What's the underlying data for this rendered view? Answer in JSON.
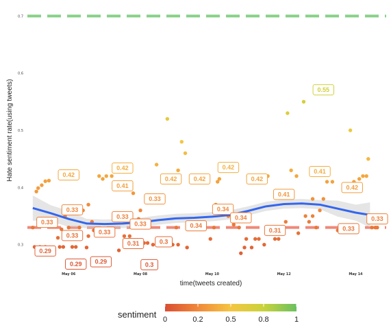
{
  "chart_data": {
    "type": "scatter",
    "xlabel": "time(tweets created)",
    "ylabel": "Hate sentiment rate(using tweets)",
    "x_ticks": [
      {
        "x": 6,
        "label": "May 06"
      },
      {
        "x": 8,
        "label": "May 08"
      },
      {
        "x": 10,
        "label": "May 10"
      },
      {
        "x": 12,
        "label": "May 12"
      },
      {
        "x": 14,
        "label": "May 14"
      }
    ],
    "y_ticks": [
      {
        "y": 0.3,
        "label": "0.3"
      },
      {
        "y": 0.4,
        "label": "0.4"
      },
      {
        "y": 0.5,
        "label": "0.5"
      },
      {
        "y": 0.6,
        "label": "0.6"
      },
      {
        "y": 0.7,
        "label": "0.7"
      }
    ],
    "xlim": [
      4.85,
      14.85
    ],
    "ylim": [
      0.26,
      0.716
    ],
    "hlines": [
      {
        "y": 0.7,
        "color": "#88d088",
        "style": "dashed"
      },
      {
        "y": 0.33,
        "color": "#f08878",
        "style": "dashed"
      }
    ],
    "points": [
      [
        5.05,
        0.296
      ],
      [
        5.2,
        0.296
      ],
      [
        5.35,
        0.296
      ],
      [
        5.1,
        0.393
      ],
      [
        5.15,
        0.399
      ],
      [
        5.25,
        0.404
      ],
      [
        5.35,
        0.411
      ],
      [
        5.45,
        0.412
      ],
      [
        5.6,
        0.29
      ],
      [
        5.75,
        0.296
      ],
      [
        5.85,
        0.296
      ],
      [
        6.1,
        0.296
      ],
      [
        6.2,
        0.296
      ],
      [
        5.7,
        0.312
      ],
      [
        5.8,
        0.327
      ],
      [
        5.9,
        0.35
      ],
      [
        6.15,
        0.355
      ],
      [
        6.3,
        0.33
      ],
      [
        6.4,
        0.36
      ],
      [
        6.55,
        0.315
      ],
      [
        6.7,
        0.325
      ],
      [
        6.9,
        0.324
      ],
      [
        6.85,
        0.42
      ],
      [
        6.95,
        0.415
      ],
      [
        7.05,
        0.42
      ],
      [
        7.2,
        0.42
      ],
      [
        7.35,
        0.43
      ],
      [
        6.65,
        0.34
      ],
      [
        6.55,
        0.37
      ],
      [
        7.55,
        0.315
      ],
      [
        7.7,
        0.315
      ],
      [
        7.85,
        0.33
      ],
      [
        7.95,
        0.345
      ],
      [
        7.8,
        0.39
      ],
      [
        8.1,
        0.303
      ],
      [
        8.2,
        0.303
      ],
      [
        8.35,
        0.3
      ],
      [
        8.45,
        0.44
      ],
      [
        8.55,
        0.3
      ],
      [
        8.7,
        0.3
      ],
      [
        8.75,
        0.52
      ],
      [
        8.9,
        0.3
      ],
      [
        9.05,
        0.43
      ],
      [
        9.15,
        0.48
      ],
      [
        9.25,
        0.46
      ],
      [
        9.4,
        0.33
      ],
      [
        9.55,
        0.33
      ],
      [
        9.65,
        0.33
      ],
      [
        9.8,
        0.33
      ],
      [
        9.95,
        0.31
      ],
      [
        10.05,
        0.33
      ],
      [
        10.15,
        0.41
      ],
      [
        10.3,
        0.43
      ],
      [
        10.45,
        0.35
      ],
      [
        10.6,
        0.335
      ],
      [
        10.75,
        0.33
      ],
      [
        10.95,
        0.31
      ],
      [
        11.1,
        0.295
      ],
      [
        11.3,
        0.31
      ],
      [
        11.45,
        0.3
      ],
      [
        11.6,
        0.32
      ],
      [
        11.75,
        0.31
      ],
      [
        11.85,
        0.31
      ],
      [
        12.05,
        0.34
      ],
      [
        12.2,
        0.43
      ],
      [
        12.35,
        0.42
      ],
      [
        12.6,
        0.35
      ],
      [
        12.7,
        0.34
      ],
      [
        12.8,
        0.35
      ],
      [
        12.55,
        0.55
      ],
      [
        12.1,
        0.53
      ],
      [
        13.0,
        0.36
      ],
      [
        13.2,
        0.41
      ],
      [
        13.35,
        0.41
      ],
      [
        13.5,
        0.325
      ],
      [
        13.65,
        0.325
      ],
      [
        13.8,
        0.325
      ],
      [
        13.85,
        0.5
      ],
      [
        13.95,
        0.41
      ],
      [
        14.1,
        0.415
      ],
      [
        14.2,
        0.42
      ],
      [
        14.3,
        0.42
      ],
      [
        14.35,
        0.45
      ],
      [
        14.45,
        0.33
      ],
      [
        14.55,
        0.33
      ],
      [
        14.6,
        0.33
      ],
      [
        9.3,
        0.295
      ],
      [
        9.05,
        0.3
      ],
      [
        8.8,
        0.31
      ],
      [
        10.8,
        0.285
      ],
      [
        10.9,
        0.295
      ],
      [
        11.2,
        0.31
      ],
      [
        9.5,
        0.42
      ],
      [
        10.2,
        0.415
      ],
      [
        11.55,
        0.42
      ],
      [
        12.8,
        0.38
      ],
      [
        13.1,
        0.38
      ],
      [
        5.0,
        0.33
      ],
      [
        7.4,
        0.29
      ],
      [
        7.6,
        0.3
      ],
      [
        8.0,
        0.36
      ],
      [
        8.05,
        0.33
      ],
      [
        9.0,
        0.33
      ],
      [
        10.1,
        0.37
      ],
      [
        11.0,
        0.42
      ],
      [
        6.0,
        0.33
      ],
      [
        6.5,
        0.295
      ],
      [
        12.4,
        0.32
      ],
      [
        12.9,
        0.33
      ],
      [
        13.6,
        0.33
      ],
      [
        14.4,
        0.34
      ]
    ],
    "labels": [
      {
        "text": "0.42",
        "x": 6.0,
        "y": 0.422
      },
      {
        "text": "0.42",
        "x": 7.5,
        "y": 0.434
      },
      {
        "text": "0.41",
        "x": 7.5,
        "y": 0.403
      },
      {
        "text": "0.33",
        "x": 6.1,
        "y": 0.361
      },
      {
        "text": "0.33",
        "x": 5.4,
        "y": 0.339
      },
      {
        "text": "0.33",
        "x": 7.5,
        "y": 0.349
      },
      {
        "text": "0.33",
        "x": 8.4,
        "y": 0.38
      },
      {
        "text": "0.33",
        "x": 8.0,
        "y": 0.336
      },
      {
        "text": "0.33",
        "x": 6.1,
        "y": 0.316
      },
      {
        "text": "0.33",
        "x": 7.0,
        "y": 0.322
      },
      {
        "text": "0.29",
        "x": 5.35,
        "y": 0.289
      },
      {
        "text": "0.29",
        "x": 6.2,
        "y": 0.266
      },
      {
        "text": "0.29",
        "x": 6.9,
        "y": 0.27
      },
      {
        "text": "0.31",
        "x": 7.8,
        "y": 0.302
      },
      {
        "text": "0.3",
        "x": 8.65,
        "y": 0.305
      },
      {
        "text": "0.3",
        "x": 8.25,
        "y": 0.265
      },
      {
        "text": "0.42",
        "x": 8.85,
        "y": 0.415
      },
      {
        "text": "0.42",
        "x": 9.65,
        "y": 0.415
      },
      {
        "text": "0.42",
        "x": 10.45,
        "y": 0.435
      },
      {
        "text": "0.42",
        "x": 11.25,
        "y": 0.415
      },
      {
        "text": "0.34",
        "x": 9.55,
        "y": 0.333
      },
      {
        "text": "0.34",
        "x": 10.3,
        "y": 0.362
      },
      {
        "text": "0.34",
        "x": 10.8,
        "y": 0.347
      },
      {
        "text": "0.41",
        "x": 12.0,
        "y": 0.388
      },
      {
        "text": "0.41",
        "x": 13.0,
        "y": 0.428
      },
      {
        "text": "0.42",
        "x": 13.9,
        "y": 0.4
      },
      {
        "text": "0.31",
        "x": 11.75,
        "y": 0.325
      },
      {
        "text": "0.33",
        "x": 13.8,
        "y": 0.328
      },
      {
        "text": "0.33",
        "x": 14.6,
        "y": 0.345
      },
      {
        "text": "0.55",
        "x": 13.1,
        "y": 0.571
      }
    ],
    "smooth": [
      [
        5.0,
        0.364
      ],
      [
        5.5,
        0.355
      ],
      [
        6.0,
        0.345
      ],
      [
        6.5,
        0.337
      ],
      [
        7.0,
        0.336
      ],
      [
        7.5,
        0.337
      ],
      [
        8.0,
        0.339
      ],
      [
        8.5,
        0.343
      ],
      [
        9.0,
        0.346
      ],
      [
        9.5,
        0.347
      ],
      [
        10.0,
        0.349
      ],
      [
        10.5,
        0.352
      ],
      [
        11.0,
        0.359
      ],
      [
        11.5,
        0.367
      ],
      [
        12.0,
        0.371
      ],
      [
        12.5,
        0.372
      ],
      [
        13.0,
        0.37
      ],
      [
        13.5,
        0.363
      ],
      [
        14.0,
        0.356
      ],
      [
        14.4,
        0.352
      ]
    ],
    "smooth_color": "#3366ee",
    "legend": {
      "title": "sentiment",
      "ticks": [
        "0",
        "0.2",
        "0.5",
        "0.8",
        "1"
      ],
      "colors": [
        "#d94e33",
        "#f0883a",
        "#f5c542",
        "#c8d33a",
        "#6ac060"
      ]
    }
  }
}
